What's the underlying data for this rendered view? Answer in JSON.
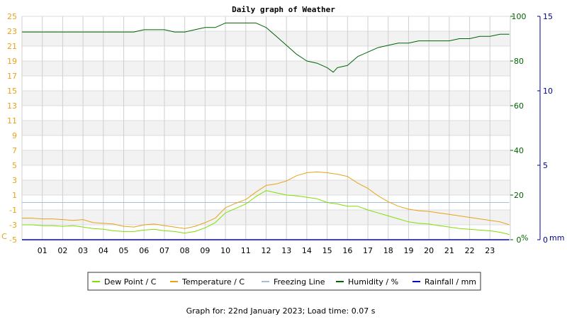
{
  "chart_data": {
    "type": "line",
    "title": "Daily graph of Weather",
    "x_ticks": [
      "01",
      "02",
      "03",
      "04",
      "05",
      "06",
      "07",
      "08",
      "09",
      "10",
      "11",
      "12",
      "13",
      "14",
      "15",
      "16",
      "17",
      "18",
      "19",
      "20",
      "21",
      "22",
      "23"
    ],
    "x_range": [
      0,
      24
    ],
    "left_axis": {
      "unit_label": "C",
      "range": [
        -5,
        25
      ],
      "ticks": [
        25,
        23,
        21,
        19,
        17,
        15,
        13,
        11,
        9,
        7,
        5,
        3,
        1,
        -1,
        -3,
        -5
      ],
      "tick_labels": [
        "25",
        "23",
        "21",
        "19",
        "17",
        "15",
        "13",
        "11",
        "9",
        "7",
        "5",
        "3",
        "1",
        "-1",
        "-3",
        "-5"
      ],
      "color": "#e8a317"
    },
    "humidity_axis": {
      "unit_label": "%",
      "range": [
        0,
        100
      ],
      "ticks": [
        100,
        80,
        60,
        40,
        20,
        0
      ],
      "tick_labels": [
        "100",
        "80",
        "60",
        "40",
        "20",
        "0"
      ],
      "color": "#006400"
    },
    "rain_axis": {
      "unit_label": "mm",
      "range": [
        0,
        15
      ],
      "ticks": [
        15,
        10,
        5,
        0
      ],
      "tick_labels": [
        "15",
        "10",
        "5",
        "0"
      ],
      "color": "#00008b"
    },
    "grid": true,
    "series": [
      {
        "name": "Dew Point / C",
        "color": "#7ee000",
        "axis": "left",
        "x": [
          0,
          0.5,
          1,
          1.5,
          2,
          2.5,
          3,
          3.5,
          4,
          4.5,
          5,
          5.5,
          6,
          6.5,
          7,
          7.5,
          8,
          8.5,
          9,
          9.5,
          10,
          10.5,
          11,
          11.5,
          12,
          12.5,
          13,
          13.5,
          14,
          14.5,
          15,
          15.5,
          16,
          16.5,
          17,
          17.5,
          18,
          18.5,
          19,
          19.5,
          20,
          20.5,
          21,
          21.5,
          22,
          22.5,
          23,
          23.5,
          23.95
        ],
        "y": [
          -3.0,
          -3.0,
          -3.1,
          -3.1,
          -3.2,
          -3.1,
          -3.3,
          -3.5,
          -3.6,
          -3.8,
          -3.9,
          -3.9,
          -3.7,
          -3.6,
          -3.8,
          -3.9,
          -4.1,
          -3.9,
          -3.4,
          -2.7,
          -1.4,
          -0.8,
          -0.2,
          0.8,
          1.6,
          1.3,
          1.0,
          0.9,
          0.7,
          0.5,
          0.0,
          -0.2,
          -0.5,
          -0.5,
          -1.0,
          -1.4,
          -1.8,
          -2.2,
          -2.6,
          -2.8,
          -2.9,
          -3.1,
          -3.3,
          -3.5,
          -3.6,
          -3.7,
          -3.8,
          -4.0,
          -4.3
        ]
      },
      {
        "name": "Temperature / C",
        "color": "#e8a317",
        "axis": "left",
        "x": [
          0,
          0.5,
          1,
          1.5,
          2,
          2.5,
          3,
          3.5,
          4,
          4.5,
          5,
          5.5,
          6,
          6.5,
          7,
          7.5,
          8,
          8.5,
          9,
          9.5,
          10,
          10.5,
          11,
          11.5,
          12,
          12.5,
          13,
          13.5,
          14,
          14.5,
          15,
          15.5,
          16,
          16.5,
          17,
          17.5,
          18,
          18.5,
          19,
          19.5,
          20,
          20.5,
          21,
          21.5,
          22,
          22.5,
          23,
          23.5,
          23.95
        ],
        "y": [
          -2.1,
          -2.1,
          -2.2,
          -2.2,
          -2.3,
          -2.4,
          -2.3,
          -2.7,
          -2.8,
          -2.9,
          -3.2,
          -3.3,
          -3.0,
          -2.9,
          -3.1,
          -3.3,
          -3.5,
          -3.2,
          -2.7,
          -2.1,
          -0.7,
          -0.1,
          0.4,
          1.4,
          2.3,
          2.5,
          2.9,
          3.6,
          4.0,
          4.1,
          4.0,
          3.8,
          3.5,
          2.6,
          1.9,
          0.9,
          0.1,
          -0.5,
          -0.9,
          -1.1,
          -1.2,
          -1.4,
          -1.6,
          -1.8,
          -2.0,
          -2.2,
          -2.4,
          -2.6,
          -3.0
        ]
      },
      {
        "name": "Freezing Line",
        "color": "#a5bfd6",
        "axis": "left",
        "x": [
          0,
          23.95
        ],
        "y": [
          0,
          0
        ]
      },
      {
        "name": "Humidity / %",
        "color": "#006400",
        "axis": "humidity",
        "x": [
          0,
          0.5,
          1,
          1.5,
          2,
          2.5,
          3,
          3.5,
          4,
          4.5,
          5,
          5.5,
          6,
          6.5,
          7,
          7.5,
          8,
          8.5,
          9,
          9.5,
          10,
          10.5,
          11,
          11.5,
          12,
          12.5,
          13,
          13.5,
          14,
          14.5,
          15,
          15.3,
          15.5,
          16,
          16.5,
          17,
          17.5,
          18,
          18.5,
          19,
          19.5,
          20,
          20.5,
          21,
          21.5,
          22,
          22.5,
          23,
          23.5,
          23.95
        ],
        "y": [
          93,
          93,
          93,
          93,
          93,
          93,
          93,
          93,
          93,
          93,
          93,
          93,
          94,
          94,
          94,
          93,
          93,
          94,
          95,
          95,
          97,
          97,
          97,
          97,
          95,
          91,
          87,
          83,
          80,
          79,
          77,
          75,
          77,
          78,
          82,
          84,
          86,
          87,
          88,
          88,
          89,
          89,
          89,
          89,
          90,
          90,
          91,
          91,
          92,
          92
        ]
      },
      {
        "name": "Rainfall / mm",
        "color": "#0000cd",
        "axis": "rain",
        "x": [
          0,
          23.95
        ],
        "y": [
          0,
          0
        ]
      }
    ],
    "legend_position": "bottom-center"
  },
  "footer": {
    "text": "Graph for: 22nd January 2023; Load time: 0.07 s"
  }
}
